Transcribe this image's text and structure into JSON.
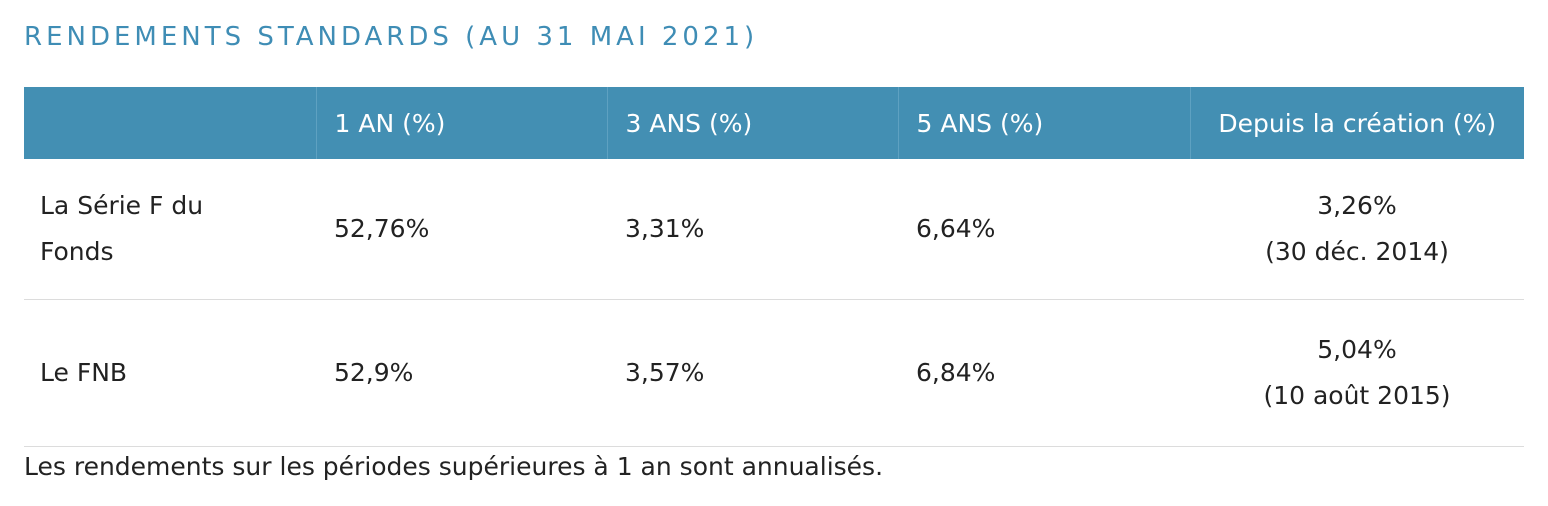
{
  "title": "RENDEMENTS STANDARDS (AU 31 MAI 2021)",
  "table": {
    "header": [
      "1 AN (%)",
      "3 ANS (%)",
      "5 ANS (%)",
      "Depuis la création (%)"
    ],
    "rows": [
      {
        "label": "La Série F du Fonds",
        "values": [
          "52,76%",
          "3,31%",
          "6,64%"
        ],
        "since": {
          "value": "3,26%",
          "date": "(30 déc. 2014)"
        }
      },
      {
        "label": "Le FNB",
        "values": [
          "52,9%",
          "3,57%",
          "6,84%"
        ],
        "since": {
          "value": "5,04%",
          "date": "(10 août 2015)"
        }
      }
    ]
  },
  "footnote": "Les rendements sur les périodes supérieures à 1 an sont annualisés."
}
